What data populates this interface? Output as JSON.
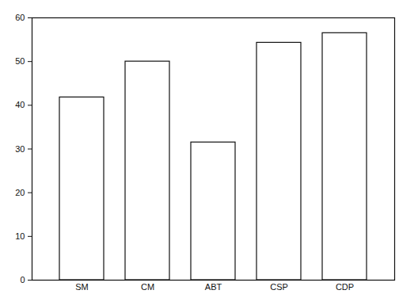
{
  "chart_data": {
    "type": "bar",
    "categories": [
      "SM",
      "CM",
      "ABT",
      "CSP",
      "CDP"
    ],
    "values": [
      41.8,
      50,
      31.5,
      54.3,
      56.5
    ],
    "color": "#ffffff",
    "ylim": [
      0,
      60
    ],
    "yticks": [
      0,
      10,
      20,
      30,
      40,
      50,
      60
    ],
    "grid": false
  }
}
